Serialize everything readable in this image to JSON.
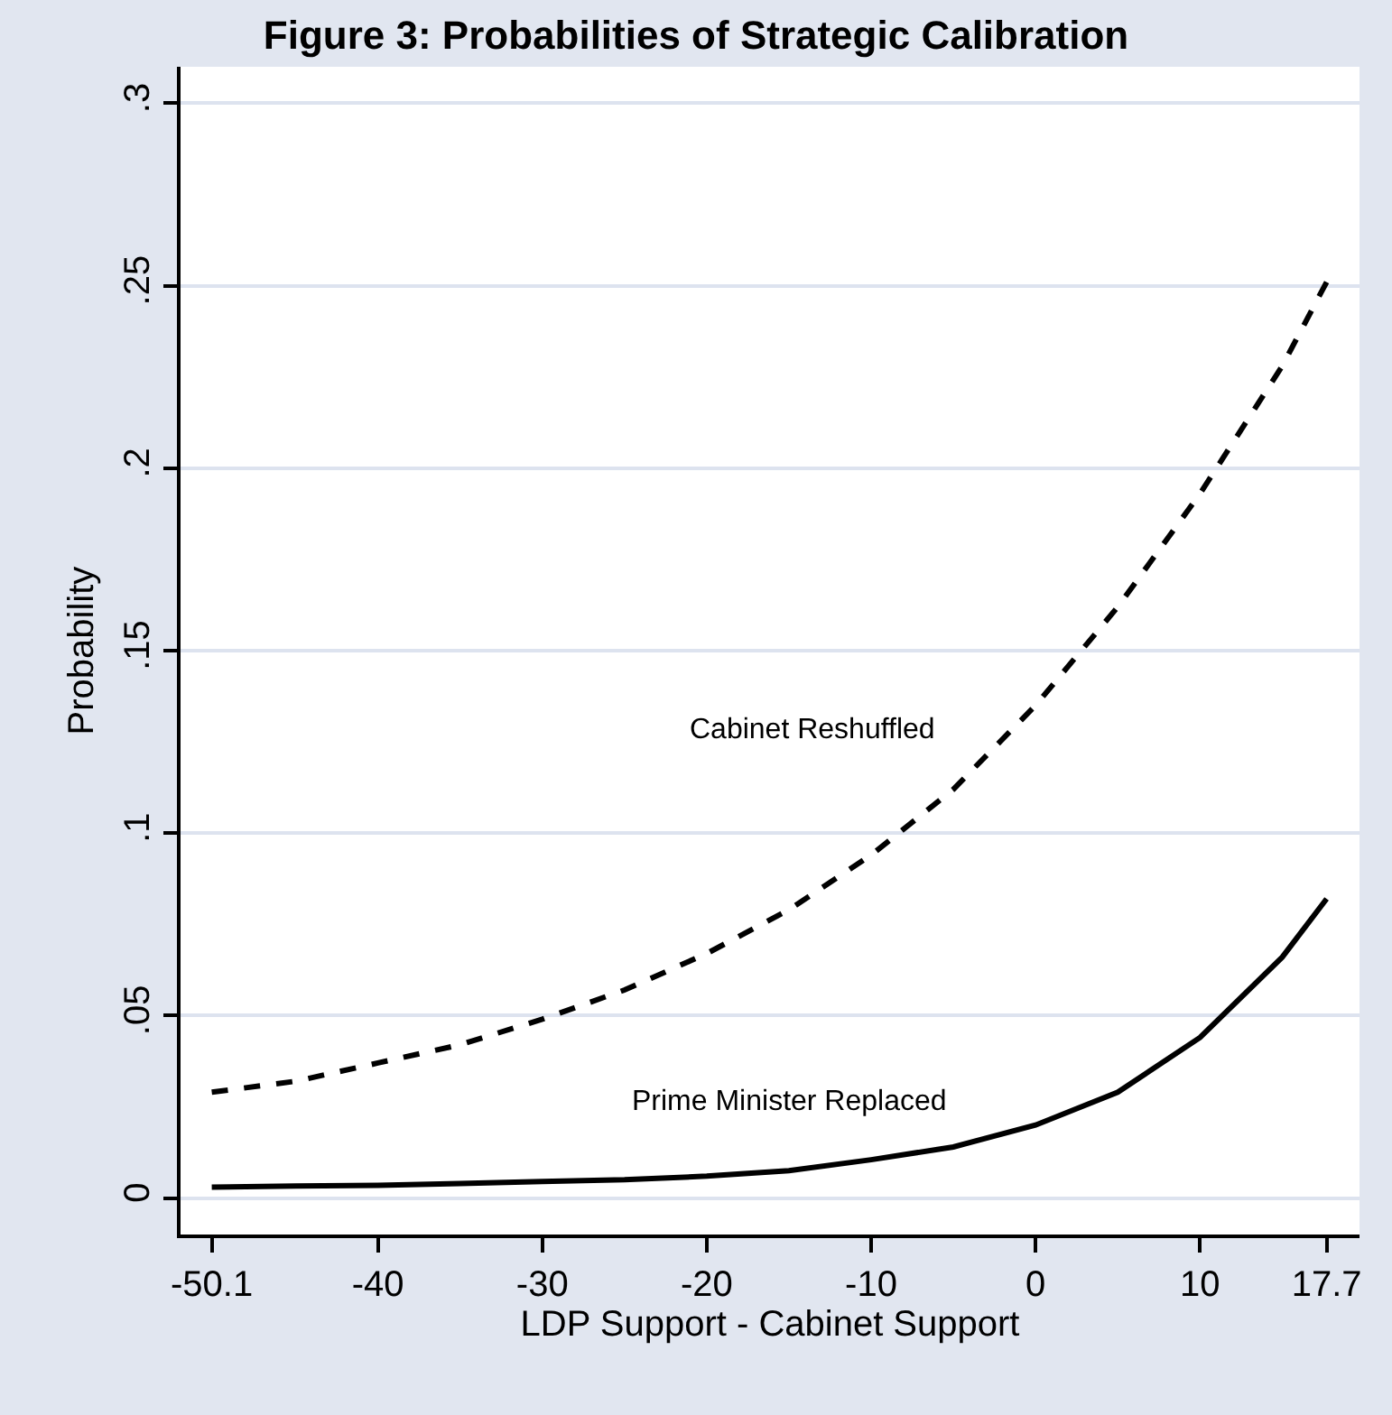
{
  "chart_data": {
    "type": "line",
    "title": "Figure 3: Probabilities of Strategic Calibration",
    "xlabel": "LDP Support - Cabinet Support",
    "ylabel": "Probability",
    "x": [
      -50.1,
      -45,
      -40,
      -35,
      -30,
      -25,
      -20,
      -15,
      -10,
      -5,
      0,
      5,
      10,
      15,
      17.7
    ],
    "series": [
      {
        "name": "Cabinet Reshuffled",
        "color": "#000000",
        "line_style": "dashed",
        "values": [
          0.029,
          0.032,
          0.037,
          0.042,
          0.049,
          0.057,
          0.067,
          0.079,
          0.094,
          0.112,
          0.135,
          0.162,
          0.193,
          0.228,
          0.251
        ]
      },
      {
        "name": "Prime Minister Replaced",
        "color": "#000000",
        "line_style": "solid",
        "values": [
          0.003,
          0.0033,
          0.0035,
          0.004,
          0.0045,
          0.005,
          0.006,
          0.0075,
          0.0105,
          0.014,
          0.02,
          0.029,
          0.044,
          0.066,
          0.082
        ]
      }
    ],
    "xlim": [
      -52,
      19.7
    ],
    "xticks": [
      -50.1,
      -40,
      -30,
      -20,
      -10,
      0,
      10,
      17.7
    ],
    "ylim": [
      -0.01,
      0.31
    ],
    "yticks": [
      {
        "value": 0,
        "label": "0"
      },
      {
        "value": 0.05,
        "label": ".05"
      },
      {
        "value": 0.1,
        "label": ".1"
      },
      {
        "value": 0.15,
        "label": ".15"
      },
      {
        "value": 0.2,
        "label": ".2"
      },
      {
        "value": 0.25,
        "label": ".25"
      },
      {
        "value": 0.3,
        "label": ".3"
      }
    ],
    "grid": "y",
    "legend": false,
    "marker": "none"
  }
}
